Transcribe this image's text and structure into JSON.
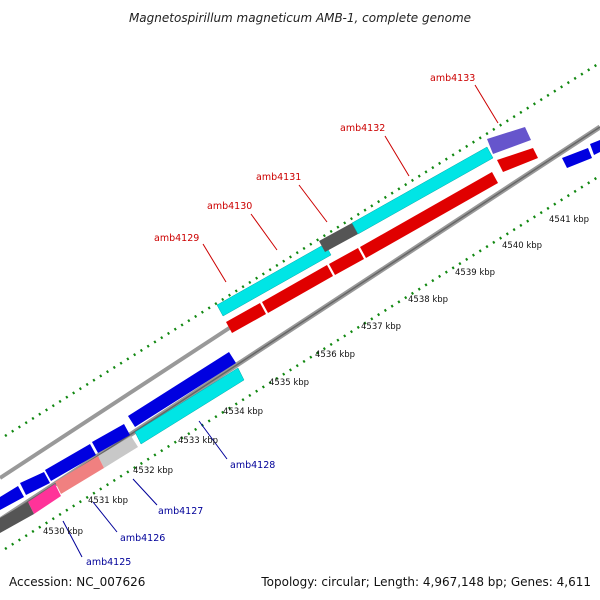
{
  "title": "Magnetospirillum magneticum AMB-1, complete genome",
  "accession": "Accession: NC_007626",
  "topology": "Topology: circular; Length: 4,967,148 bp; Genes: 4,611",
  "kbp_ticks": [
    "4530 kbp",
    "4531 kbp",
    "4532 kbp",
    "4533 kbp",
    "4534 kbp",
    "4535 kbp",
    "4536 kbp",
    "4537 kbp",
    "4538 kbp",
    "4539 kbp",
    "4540 kbp",
    "4541 kbp"
  ],
  "gene_labels_top": [
    "amb4129",
    "amb4130",
    "amb4131",
    "amb4132",
    "amb4133"
  ],
  "gene_labels_bottom": [
    "amb4125",
    "amb4126",
    "amb4127",
    "amb4128"
  ],
  "colors": {
    "highlight_label": "#cc0000",
    "normal_label": "#000099",
    "cyan": "#00e5e5",
    "red": "#e00000",
    "blue": "#0000e0",
    "pink": "#ff3399",
    "salmon": "#f08080",
    "purple": "#6655cc",
    "dark_gray": "#555555",
    "light_gray": "#c8c8c8",
    "backbone": "#888888",
    "tick_green": "#118811"
  }
}
